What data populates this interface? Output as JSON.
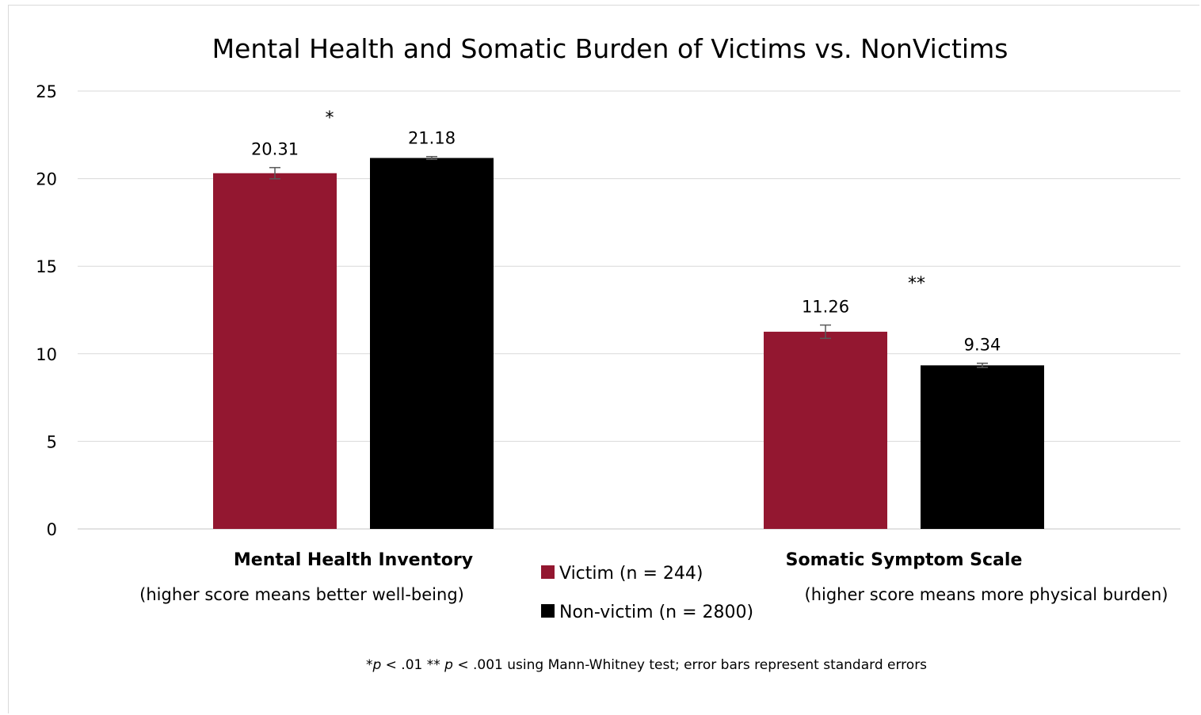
{
  "chart_data": {
    "type": "bar",
    "title": "Mental Health and Somatic Burden of Victims vs. NonVictims",
    "categories": [
      "Mental Health Inventory",
      "Somatic Symptom Scale"
    ],
    "category_subtitles": [
      "(higher score means better well-being)",
      "(higher score means more physical burden)"
    ],
    "series": [
      {
        "name": "Victim (n = 244)",
        "color": "#931730",
        "values": [
          20.31,
          11.26
        ],
        "errors": [
          0.32,
          0.38
        ]
      },
      {
        "name": "Non-victim (n = 2800)",
        "color": "#000000",
        "values": [
          21.18,
          9.34
        ],
        "errors": [
          0.08,
          0.12
        ]
      }
    ],
    "data_labels": [
      [
        "20.31",
        "11.26"
      ],
      [
        "21.18",
        "9.34"
      ]
    ],
    "significance_markers": [
      "*",
      "**"
    ],
    "ylim": [
      0,
      25
    ],
    "yticks": [
      0,
      5,
      10,
      15,
      20,
      25
    ],
    "xlabel": "",
    "ylabel": "",
    "grid": true,
    "legend_position": "bottom-center",
    "footnote": {
      "prefix": "*",
      "p1": "p",
      "mid1": " < .01 ** ",
      "p2": "p",
      "mid2": " < .001 using Mann-Whitney test; error bars represent standard errors"
    },
    "colors": {
      "grid": "#d9d9d9",
      "axis": "#d9d9d9",
      "error_bar": "#595959"
    }
  }
}
